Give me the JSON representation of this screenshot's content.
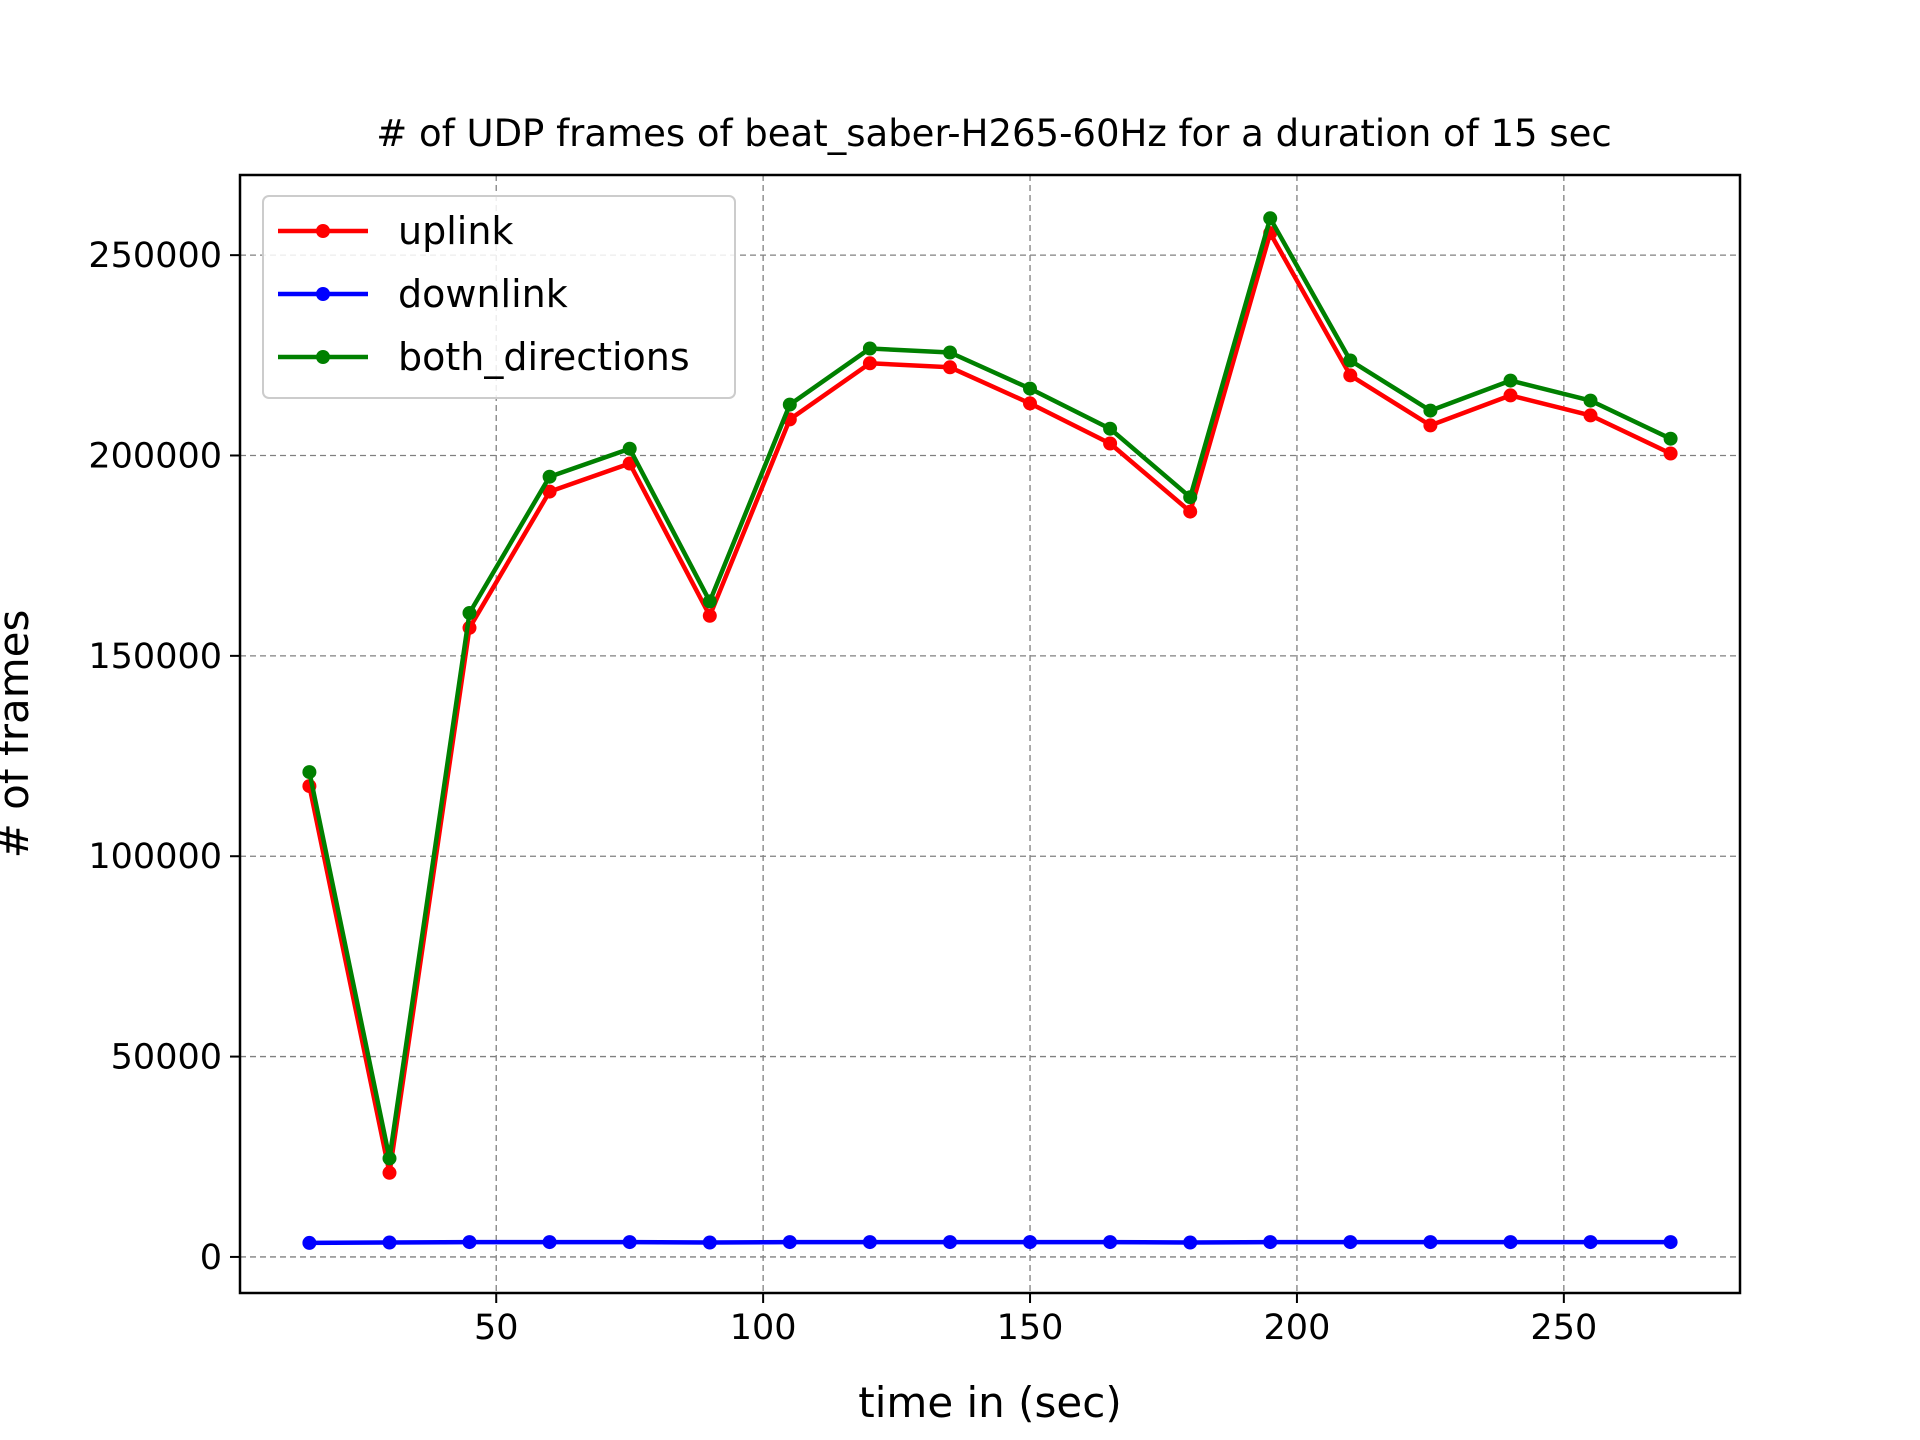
{
  "chart_data": {
    "type": "line",
    "title": "# of UDP frames of beat_saber-H265-60Hz for a duration of 15 sec",
    "xlabel": "time in (sec)",
    "ylabel": "# of frames",
    "xlim": [
      2,
      283
    ],
    "ylim": [
      -9000,
      270000
    ],
    "xticks": [
      50,
      100,
      150,
      200,
      250
    ],
    "yticks": [
      0,
      50000,
      100000,
      150000,
      200000,
      250000
    ],
    "grid": true,
    "legend_position": "top-left",
    "x": [
      15,
      30,
      45,
      60,
      75,
      90,
      105,
      120,
      135,
      150,
      165,
      180,
      195,
      210,
      225,
      240,
      255,
      270
    ],
    "series": [
      {
        "name": "uplink",
        "color": "#ff0000",
        "values": [
          117500,
          21000,
          157000,
          191000,
          198000,
          160000,
          209000,
          223000,
          222000,
          213000,
          203000,
          186000,
          255500,
          220000,
          207500,
          215000,
          210000,
          200500
        ]
      },
      {
        "name": "downlink",
        "color": "#0000ff",
        "values": [
          3500,
          3600,
          3700,
          3700,
          3700,
          3600,
          3700,
          3700,
          3700,
          3700,
          3700,
          3600,
          3700,
          3700,
          3700,
          3700,
          3700,
          3700
        ]
      },
      {
        "name": "both_directions",
        "color": "#008000",
        "values": [
          121000,
          24600,
          160700,
          194700,
          201700,
          163600,
          212700,
          226700,
          225700,
          216700,
          206700,
          189600,
          259200,
          223700,
          211200,
          218700,
          213700,
          204200
        ]
      }
    ]
  }
}
